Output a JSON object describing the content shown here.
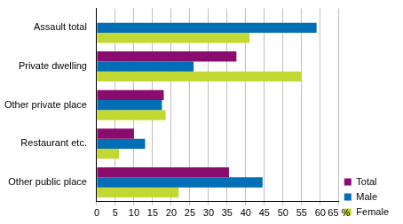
{
  "chart_data": {
    "type": "bar",
    "orientation": "horizontal",
    "categories": [
      "Assault total",
      "Private dwelling",
      "Other private place",
      "Restaurant etc.",
      "Other public place"
    ],
    "series": [
      {
        "name": "Total",
        "color": "#8a0c6e",
        "values": [
          null,
          37.5,
          18,
          10,
          35.5
        ]
      },
      {
        "name": "Male",
        "color": "#006fb6",
        "values": [
          59,
          26,
          17.5,
          13,
          44.5
        ]
      },
      {
        "name": "Female",
        "color": "#c4d833",
        "values": [
          41,
          55,
          18.5,
          6,
          22
        ]
      }
    ],
    "xlim": [
      0,
      65
    ],
    "xticks": [
      0,
      5,
      10,
      15,
      20,
      25,
      30,
      35,
      40,
      45,
      50,
      55,
      60,
      {
        "value": 65,
        "label": "65 %"
      }
    ],
    "grid": true,
    "legend": "lower right"
  }
}
